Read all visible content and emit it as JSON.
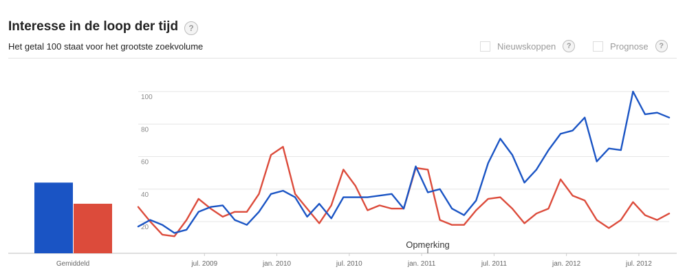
{
  "header": {
    "title": "Interesse in de loop der tijd",
    "subtitle": "Het getal 100 staat voor het grootste zoekvolume",
    "help_glyph": "?",
    "options": [
      {
        "label": "Nieuwskoppen",
        "checked": false
      },
      {
        "label": "Prognose",
        "checked": false
      }
    ]
  },
  "colors": {
    "series_blue": "#1a54c4",
    "series_red": "#dc4b3b",
    "grid": "#e6e6e6"
  },
  "chart_data": [
    {
      "type": "bar",
      "categories": [
        "Gemiddeld"
      ],
      "series": [
        {
          "color": "#1a54c4",
          "values": [
            44
          ]
        },
        {
          "color": "#dc4b3b",
          "values": [
            31
          ]
        }
      ],
      "ylim": [
        0,
        100
      ]
    },
    {
      "type": "line",
      "x_ticks": [
        "jul. 2009",
        "jan. 2010",
        "jul. 2010",
        "jan. 2011",
        "jul. 2011",
        "jan. 2012",
        "jul. 2012"
      ],
      "y_ticks": [
        20,
        40,
        60,
        80,
        100
      ],
      "ylim": [
        0,
        100
      ],
      "grid": true,
      "x_start": "2009-01",
      "x_step": "month",
      "annotation": "Opmerking",
      "series": [
        {
          "color": "#1a54c4",
          "values": [
            17,
            21,
            18,
            13,
            15,
            26,
            29,
            30,
            21,
            18,
            26,
            37,
            39,
            35,
            23,
            31,
            22,
            35,
            35,
            35,
            36,
            37,
            28,
            54,
            38,
            40,
            28,
            24,
            33,
            56,
            71,
            61,
            44,
            52,
            64,
            74,
            76,
            84,
            57,
            65,
            64,
            100,
            86,
            87,
            84
          ]
        },
        {
          "color": "#dc4b3b",
          "values": [
            29,
            20,
            12,
            11,
            21,
            34,
            28,
            23,
            26,
            26,
            37,
            61,
            66,
            37,
            28,
            19,
            30,
            52,
            42,
            27,
            30,
            28,
            28,
            53,
            52,
            21,
            18,
            18,
            27,
            34,
            35,
            28,
            19,
            25,
            28,
            46,
            36,
            33,
            21,
            16,
            21,
            32,
            24,
            21,
            25
          ]
        }
      ]
    }
  ]
}
